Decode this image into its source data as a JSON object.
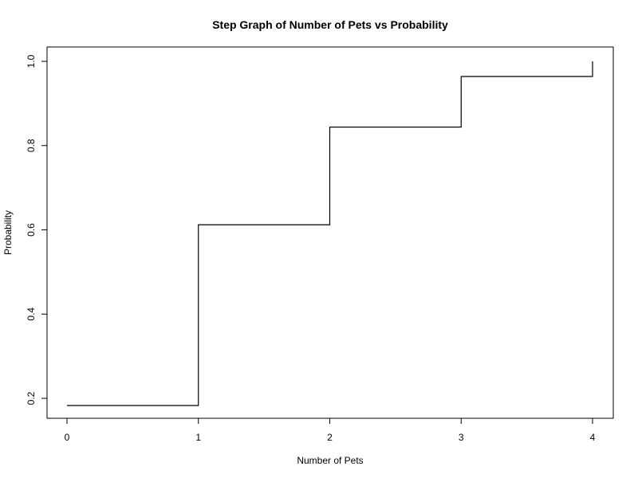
{
  "chart_data": {
    "type": "line",
    "title": "Step Graph of Number of Pets vs Probability",
    "xlabel": "Number of Pets",
    "ylabel": "Probability",
    "xlim": [
      0,
      4
    ],
    "ylim": [
      0.2,
      1.0
    ],
    "x_ticks": [
      0,
      1,
      2,
      3,
      4
    ],
    "y_ticks": [
      0.2,
      0.4,
      0.6,
      0.8,
      1.0
    ],
    "x_tick_labels": [
      "0",
      "1",
      "2",
      "3",
      "4"
    ],
    "y_tick_labels": [
      "0.2",
      "0.4",
      "0.6",
      "0.8",
      "1.0"
    ],
    "step": "post",
    "grid": false,
    "legend": "none",
    "line_color": "#000000",
    "series": [
      {
        "x": [
          0,
          1,
          2,
          3,
          4
        ],
        "y": [
          0.183,
          0.612,
          0.844,
          0.964,
          1.0
        ]
      }
    ]
  }
}
